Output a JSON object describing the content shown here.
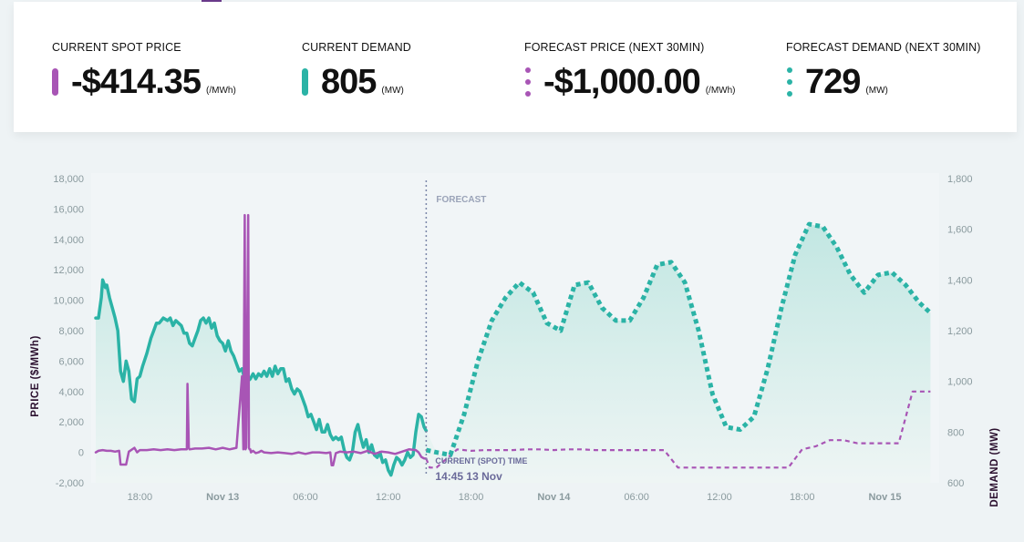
{
  "stats": [
    {
      "label": "CURRENT SPOT PRICE",
      "value": "-$414.35",
      "unit": "(/MWh)",
      "indicator": "solid",
      "color": "#a855b5"
    },
    {
      "label": "CURRENT DEMAND",
      "value": "805",
      "unit": "(MW)",
      "indicator": "solid",
      "color": "#2bb3a6"
    },
    {
      "label": "FORECAST PRICE (NEXT 30MIN)",
      "value": "-$1,000.00",
      "unit": "(/MWh)",
      "indicator": "dots",
      "color": "#a855b5"
    },
    {
      "label": "FORECAST DEMAND (NEXT 30MIN)",
      "value": "729",
      "unit": "(MW)",
      "indicator": "dots",
      "color": "#2bb3a6"
    }
  ],
  "colors": {
    "price": "#a855b5",
    "demand": "#2bb3a6",
    "demand_fill": "#bfe6e1",
    "axis_title": "#2a0f2e",
    "forecast_line": "#7a86a8",
    "current_time": "#6a6a9a"
  },
  "chart_data": {
    "type": "line",
    "x_unit": "hour offset from Nov 13 00:00 (local)",
    "xlim": [
      -9.2,
      51.8
    ],
    "x_ticks": [
      {
        "x": -6,
        "label": "18:00",
        "bold": false
      },
      {
        "x": 0,
        "label": "Nov 13",
        "bold": true
      },
      {
        "x": 6,
        "label": "06:00",
        "bold": false
      },
      {
        "x": 12,
        "label": "12:00",
        "bold": false
      },
      {
        "x": 18,
        "label": "18:00",
        "bold": false
      },
      {
        "x": 24,
        "label": "Nov 14",
        "bold": true
      },
      {
        "x": 30,
        "label": "06:00",
        "bold": false
      },
      {
        "x": 36,
        "label": "12:00",
        "bold": false
      },
      {
        "x": 42,
        "label": "18:00",
        "bold": false
      },
      {
        "x": 48,
        "label": "Nov 15",
        "bold": true
      }
    ],
    "ylabel_left": "PRICE ($/MWh)",
    "ylim_left": [
      -2000,
      18000
    ],
    "yticks_left": [
      "-2,000",
      "0",
      "2,000",
      "4,000",
      "6,000",
      "8,000",
      "10,000",
      "12,000",
      "14,000",
      "16,000",
      "18,000"
    ],
    "ylabel_right": "DEMAND (MW)",
    "ylim_right": [
      600,
      1800
    ],
    "yticks_right": [
      "600",
      "800",
      "1,000",
      "1,200",
      "1,400",
      "1,600",
      "1,800"
    ],
    "grid": false,
    "forecast_label": "FORECAST",
    "current_x": 14.75,
    "current_time_label": "CURRENT (SPOT) TIME",
    "current_time_value": "14:45 13 Nov",
    "series": [
      {
        "role": "demand_actual",
        "axis": "right",
        "style": "solid",
        "x": [
          -9.2,
          -9,
          -8.8,
          -8.7,
          -8.5,
          -8.4,
          -8.2,
          -8.0,
          -7.8,
          -7.6,
          -7.4,
          -7.2,
          -7.0,
          -6.8,
          -6.6,
          -6.4,
          -6.2,
          -6.0,
          -5.8,
          -5.5,
          -5.2,
          -5.0,
          -4.8,
          -4.6,
          -4.3,
          -4.0,
          -3.8,
          -3.6,
          -3.4,
          -3.2,
          -3.0,
          -2.8,
          -2.6,
          -2.4,
          -2.2,
          -2.0,
          -1.8,
          -1.6,
          -1.4,
          -1.2,
          -1.0,
          -0.8,
          -0.6,
          -0.4,
          -0.2,
          0.0,
          0.2,
          0.4,
          0.6,
          0.8,
          1.0,
          1.2,
          1.4,
          1.6,
          1.8,
          2.0,
          2.2,
          2.4,
          2.6,
          2.8,
          3.0,
          3.2,
          3.4,
          3.6,
          3.8,
          4.0,
          4.2,
          4.4,
          4.6,
          4.8,
          5.0,
          5.2,
          5.4,
          5.6,
          5.8,
          6.0,
          6.2,
          6.4,
          6.6,
          6.8,
          7.0,
          7.2,
          7.4,
          7.6,
          7.8,
          8.0,
          8.2,
          8.4,
          8.6,
          8.8,
          9.0,
          9.2,
          9.4,
          9.6,
          9.8,
          10.0,
          10.2,
          10.4,
          10.6,
          10.8,
          11.0,
          11.2,
          11.4,
          11.6,
          11.8,
          12.0,
          12.2,
          12.4,
          12.6,
          12.8,
          13.0,
          13.2,
          13.4,
          13.6,
          13.8,
          14.0,
          14.2,
          14.4,
          14.6,
          14.75
        ],
        "values": [
          1250,
          1250,
          1330,
          1400,
          1370,
          1380,
          1330,
          1290,
          1250,
          1200,
          1040,
          1000,
          1080,
          1040,
          930,
          920,
          1010,
          1020,
          1060,
          1110,
          1170,
          1200,
          1230,
          1230,
          1250,
          1240,
          1250,
          1220,
          1240,
          1230,
          1220,
          1190,
          1190,
          1150,
          1140,
          1170,
          1200,
          1240,
          1250,
          1230,
          1250,
          1210,
          1230,
          1180,
          1160,
          1150,
          1120,
          1160,
          1120,
          1100,
          1070,
          1040,
          1050,
          1010,
          1000,
          1010,
          1030,
          1010,
          1030,
          1020,
          1040,
          1020,
          1050,
          1020,
          1060,
          1030,
          1050,
          1050,
          1000,
          1010,
          970,
          950,
          970,
          960,
          930,
          900,
          860,
          870,
          840,
          810,
          850,
          800,
          800,
          830,
          790,
          770,
          780,
          770,
          780,
          730,
          700,
          690,
          720,
          800,
          830,
          780,
          740,
          770,
          720,
          750,
          710,
          700,
          720,
          680,
          690,
          650,
          630,
          670,
          700,
          690,
          670,
          690,
          720,
          700,
          710,
          800,
          870,
          860,
          820,
          805
        ]
      },
      {
        "role": "demand_forecast",
        "axis": "right",
        "style": "dashed",
        "x": [
          14.75,
          15.5,
          16.5,
          17.5,
          18.5,
          19.5,
          20.5,
          21.5,
          22.5,
          23.5,
          24.5,
          25.5,
          26.5,
          27.5,
          28.5,
          29.5,
          30.5,
          31.5,
          32.5,
          33.5,
          34.5,
          35.5,
          36.5,
          37.5,
          38.5,
          39.5,
          40.5,
          41.5,
          42.5,
          43.5,
          44.5,
          45.5,
          46.5,
          47.5,
          48.5,
          49.5,
          50.5,
          51.3
        ],
        "values": [
          729,
          720,
          710,
          870,
          1080,
          1240,
          1330,
          1390,
          1350,
          1230,
          1200,
          1380,
          1390,
          1290,
          1240,
          1240,
          1330,
          1460,
          1470,
          1390,
          1200,
          950,
          820,
          810,
          860,
          1050,
          1290,
          1500,
          1620,
          1610,
          1530,
          1420,
          1350,
          1420,
          1430,
          1380,
          1310,
          1270
        ]
      },
      {
        "role": "price_actual",
        "axis": "left",
        "style": "solid",
        "x": [
          -9.2,
          -9.0,
          -8.7,
          -8.4,
          -8.1,
          -7.8,
          -7.5,
          -7.4,
          -7.2,
          -7.1,
          -7.0,
          -6.8,
          -6.4,
          -6.2,
          -6.0,
          -5.5,
          -5.0,
          -4.5,
          -4.0,
          -3.5,
          -3.0,
          -2.6,
          -2.55,
          -2.45,
          -2.4,
          -2.0,
          -1.5,
          -1.0,
          -0.5,
          0.0,
          0.5,
          1.0,
          1.4,
          1.5,
          1.6,
          1.65,
          1.7,
          1.75,
          1.85,
          1.9,
          1.95,
          2.0,
          2.05,
          2.2,
          2.4,
          2.6,
          2.8,
          3.0,
          3.5,
          4.0,
          4.5,
          5.0,
          5.5,
          6.0,
          6.5,
          7.0,
          7.5,
          7.8,
          7.9,
          8.0,
          8.2,
          8.5,
          9.0,
          9.5,
          10.0,
          10.5,
          11.0,
          11.5,
          12.0,
          12.5,
          13.0,
          13.5,
          14.0,
          14.2,
          14.4,
          14.6,
          14.75
        ],
        "values": [
          0,
          100,
          150,
          100,
          100,
          50,
          100,
          -800,
          -800,
          -800,
          -800,
          50,
          300,
          0,
          150,
          150,
          200,
          150,
          200,
          150,
          200,
          200,
          4500,
          300,
          200,
          250,
          250,
          300,
          200,
          300,
          200,
          300,
          5000,
          200,
          15600,
          200,
          300,
          5000,
          15600,
          300,
          200,
          200,
          0,
          100,
          -50,
          0,
          100,
          0,
          -50,
          0,
          -50,
          -100,
          0,
          -100,
          0,
          0,
          -50,
          0,
          -850,
          -850,
          -50,
          50,
          0,
          50,
          -50,
          100,
          -100,
          50,
          0,
          -100,
          50,
          200,
          150,
          0,
          -300,
          -400,
          -414
        ]
      },
      {
        "role": "price_forecast",
        "axis": "left",
        "style": "dashed",
        "x": [
          14.75,
          15.0,
          15.5,
          17.0,
          18.0,
          19.0,
          20.0,
          21.0,
          22.0,
          23.0,
          24.0,
          25.0,
          26.0,
          27.0,
          28.0,
          29.0,
          30.0,
          31.0,
          32.0,
          33.0,
          34.0,
          35.0,
          36.0,
          37.0,
          38.0,
          39.0,
          40.0,
          41.0,
          42.0,
          43.0,
          44.0,
          45.0,
          46.0,
          47.0,
          48.0,
          49.0,
          50.0,
          51.3
        ],
        "values": [
          -414,
          -1000,
          -1000,
          200,
          100,
          150,
          150,
          150,
          200,
          200,
          150,
          200,
          200,
          150,
          150,
          150,
          150,
          150,
          150,
          -1000,
          -1000,
          -1000,
          -1000,
          -1000,
          -1000,
          -1000,
          -1000,
          -1000,
          200,
          400,
          800,
          800,
          600,
          600,
          600,
          600,
          4000,
          4000
        ]
      }
    ]
  }
}
